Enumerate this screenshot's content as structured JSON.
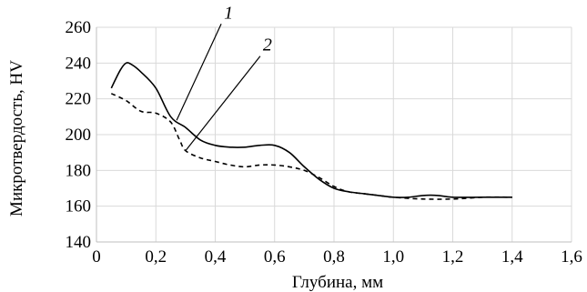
{
  "chart_data": {
    "type": "line",
    "xlabel": "Глубина, мм",
    "ylabel": "Микротвердость, HV",
    "xlim": [
      0,
      1.6
    ],
    "ylim": [
      140,
      260
    ],
    "x_ticks": [
      "0",
      "0,2",
      "0,4",
      "0,6",
      "0,8",
      "1,0",
      "1,2",
      "1,4",
      "1,6"
    ],
    "y_ticks": [
      "140",
      "160",
      "180",
      "200",
      "220",
      "240",
      "260"
    ],
    "grid": true,
    "series": [
      {
        "name": "1",
        "style": "solid",
        "color": "#000000",
        "x": [
          0.05,
          0.08,
          0.1,
          0.12,
          0.15,
          0.2,
          0.25,
          0.3,
          0.35,
          0.4,
          0.45,
          0.5,
          0.55,
          0.6,
          0.65,
          0.7,
          0.75,
          0.8,
          0.85,
          0.9,
          0.95,
          1.0,
          1.05,
          1.1,
          1.15,
          1.2,
          1.3,
          1.4
        ],
        "y": [
          226,
          236,
          240,
          239,
          235,
          226,
          210,
          204,
          197,
          194,
          193,
          193,
          194,
          194,
          190,
          182,
          175,
          170,
          168,
          167,
          166,
          165,
          165,
          166,
          166,
          165,
          165,
          165
        ]
      },
      {
        "name": "2",
        "style": "dashed",
        "color": "#000000",
        "x": [
          0.05,
          0.1,
          0.15,
          0.2,
          0.25,
          0.28,
          0.3,
          0.35,
          0.4,
          0.45,
          0.5,
          0.55,
          0.6,
          0.65,
          0.7,
          0.75,
          0.8,
          0.85,
          0.9,
          0.95,
          1.0,
          1.1,
          1.2,
          1.3,
          1.4
        ],
        "y": [
          223,
          219,
          213,
          212,
          207,
          197,
          191,
          187,
          185,
          183,
          182,
          183,
          183,
          182,
          180,
          176,
          171,
          168,
          167,
          166,
          165,
          164,
          164,
          165,
          165
        ]
      }
    ],
    "annotations": [
      {
        "text": "1",
        "series": 0,
        "anchor_x": 0.27,
        "anchor_y": 208
      },
      {
        "text": "2",
        "series": 1,
        "anchor_x": 0.3,
        "anchor_y": 191
      }
    ]
  }
}
